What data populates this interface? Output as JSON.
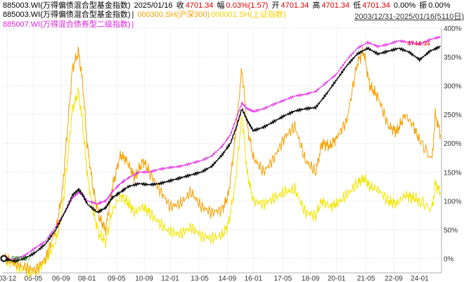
{
  "header": {
    "line1": {
      "code": "885003.WI(万得偏债混合型基金指数)",
      "date": "2025/01/16",
      "close_label": "收",
      "close": "4701.34",
      "change_label": "幅",
      "change": "0.03%(1.57)",
      "open_label": "开",
      "open": "4701.34",
      "high_label": "高",
      "high": "4701.34",
      "low_label": "低",
      "low": "4701.34",
      "amount": "0.00%",
      "amp_label": "振",
      "amp": "0.00%"
    },
    "line2": {
      "s1": "885003.WI(万得偏债混合型基金指数)",
      "sep": "|",
      "s2": "000300.SH(沪深300)",
      "s3": "000001.SH(上证指数)",
      "range": "2003/12/31-2025/01/16(5110日)"
    },
    "line3": {
      "s4": "885007.WI(万得混合债券型二级指数)",
      "sep": "|"
    }
  },
  "colors": {
    "s1": "#000000",
    "s2": "#f5a000",
    "s3": "#f2e600",
    "s4": "#e020e0",
    "grid": "#c8c8c8",
    "axis_text": "#333333",
    "last_label": "#e00000",
    "start_label": "#008000"
  },
  "chart_data": {
    "type": "line",
    "title": "",
    "xlabel": "",
    "ylabel": "",
    "ylim": [
      -25,
      400
    ],
    "yticks": [
      0,
      50,
      100,
      150,
      200,
      250,
      300,
      350,
      400
    ],
    "ytick_labels": [
      "0%",
      "50%",
      "100%",
      "150%",
      "200%",
      "250%",
      "300%",
      "350%",
      "400%"
    ],
    "xlim": [
      2003.95,
      2025.05
    ],
    "xticks": [
      2004.17,
      2005.42,
      2006.75,
      2008.0,
      2009.42,
      2010.75,
      2012.0,
      2013.42,
      2014.75,
      2016.0,
      2017.42,
      2018.75,
      2020.0,
      2021.42,
      2022.75,
      2024.0
    ],
    "xtick_labels": [
      "03-12",
      "05-05",
      "06-09",
      "08-01",
      "09-05",
      "10-09",
      "12-01",
      "13-05",
      "14-09",
      "16-01",
      "17-05",
      "18-09",
      "20-01",
      "21-05",
      "22-09",
      "24-01"
    ],
    "annotations": [
      {
        "text": "4744.94",
        "x": 2023.4,
        "y": 373
      },
      {
        "text": "990.67",
        "x": 2004.7,
        "y": 0
      }
    ],
    "series": [
      {
        "name": "885003.WI(万得偏债混合型基金指数)",
        "color": "#000000",
        "x": [
          2004.0,
          2004.5,
          2005.0,
          2005.5,
          2006.0,
          2006.5,
          2007.0,
          2007.3,
          2007.6,
          2007.8,
          2008.0,
          2008.5,
          2008.9,
          2009.2,
          2009.6,
          2010.0,
          2010.5,
          2011.0,
          2011.5,
          2012.0,
          2012.5,
          2013.0,
          2013.5,
          2014.0,
          2014.5,
          2014.9,
          2015.2,
          2015.45,
          2015.7,
          2016.0,
          2016.5,
          2017.0,
          2017.5,
          2018.0,
          2018.5,
          2019.0,
          2019.5,
          2020.0,
          2020.5,
          2021.0,
          2021.5,
          2022.0,
          2022.5,
          2023.0,
          2023.5,
          2024.0,
          2024.5,
          2025.0
        ],
        "values": [
          0,
          -5,
          0,
          10,
          25,
          50,
          85,
          110,
          120,
          110,
          95,
          80,
          88,
          105,
          115,
          125,
          130,
          128,
          130,
          135,
          140,
          145,
          150,
          160,
          180,
          200,
          230,
          260,
          240,
          222,
          228,
          238,
          248,
          256,
          260,
          262,
          285,
          310,
          335,
          355,
          365,
          355,
          360,
          365,
          358,
          345,
          360,
          368
        ]
      },
      {
        "name": "000300.SH(沪深300)",
        "color": "#f5a000",
        "x": [
          2004.0,
          2004.5,
          2005.0,
          2005.5,
          2006.0,
          2006.5,
          2006.8,
          2007.0,
          2007.3,
          2007.6,
          2007.8,
          2008.0,
          2008.3,
          2008.6,
          2008.9,
          2009.2,
          2009.6,
          2009.9,
          2010.3,
          2010.7,
          2011.0,
          2011.5,
          2012.0,
          2012.5,
          2013.0,
          2013.5,
          2014.0,
          2014.5,
          2014.8,
          2015.1,
          2015.45,
          2015.7,
          2016.0,
          2016.5,
          2017.0,
          2017.5,
          2018.0,
          2018.5,
          2019.0,
          2019.3,
          2019.7,
          2020.0,
          2020.5,
          2021.0,
          2021.3,
          2021.6,
          2022.0,
          2022.5,
          2022.9,
          2023.3,
          2023.7,
          2024.0,
          2024.6,
          2024.75,
          2025.0
        ],
        "values": [
          0,
          -8,
          -15,
          -20,
          0,
          50,
          110,
          200,
          330,
          360,
          300,
          200,
          120,
          70,
          50,
          120,
          180,
          170,
          140,
          170,
          150,
          120,
          90,
          95,
          115,
          90,
          80,
          85,
          110,
          200,
          330,
          230,
          175,
          150,
          175,
          210,
          230,
          170,
          150,
          200,
          195,
          210,
          240,
          340,
          360,
          300,
          280,
          230,
          220,
          250,
          230,
          205,
          170,
          250,
          215
        ]
      },
      {
        "name": "000001.SH(上证指数)",
        "color": "#f2e600",
        "x": [
          2004.0,
          2004.5,
          2005.0,
          2005.5,
          2006.0,
          2006.5,
          2006.8,
          2007.0,
          2007.3,
          2007.6,
          2007.8,
          2008.0,
          2008.3,
          2008.6,
          2008.9,
          2009.2,
          2009.6,
          2009.9,
          2010.3,
          2010.7,
          2011.0,
          2011.5,
          2012.0,
          2012.5,
          2013.0,
          2013.5,
          2014.0,
          2014.5,
          2014.8,
          2015.1,
          2015.45,
          2015.7,
          2016.0,
          2016.5,
          2017.0,
          2017.5,
          2018.0,
          2018.5,
          2019.0,
          2019.3,
          2019.7,
          2020.0,
          2020.5,
          2021.0,
          2021.3,
          2021.6,
          2022.0,
          2022.5,
          2022.9,
          2023.3,
          2023.7,
          2024.0,
          2024.6,
          2024.75,
          2025.0
        ],
        "values": [
          0,
          -10,
          -20,
          -25,
          -5,
          30,
          80,
          150,
          260,
          290,
          230,
          150,
          80,
          40,
          30,
          80,
          110,
          100,
          80,
          90,
          80,
          60,
          45,
          42,
          55,
          40,
          35,
          40,
          60,
          120,
          250,
          150,
          100,
          95,
          105,
          115,
          120,
          80,
          75,
          100,
          90,
          95,
          110,
          130,
          140,
          125,
          120,
          100,
          95,
          110,
          105,
          100,
          85,
          130,
          115
        ]
      },
      {
        "name": "885007.WI(万得混合债券型二级指数)",
        "color": "#e020e0",
        "x": [
          2004.0,
          2004.5,
          2005.0,
          2005.5,
          2006.0,
          2006.5,
          2007.0,
          2007.3,
          2007.6,
          2007.8,
          2008.0,
          2008.5,
          2008.9,
          2009.2,
          2009.6,
          2010.0,
          2010.5,
          2011.0,
          2011.5,
          2012.0,
          2012.5,
          2013.0,
          2013.5,
          2014.0,
          2014.5,
          2014.9,
          2015.2,
          2015.45,
          2015.7,
          2016.0,
          2016.5,
          2017.0,
          2017.5,
          2018.0,
          2018.5,
          2019.0,
          2019.5,
          2020.0,
          2020.5,
          2021.0,
          2021.5,
          2022.0,
          2022.5,
          2023.0,
          2023.5,
          2024.0,
          2024.5,
          2025.0
        ],
        "values": [
          0,
          -2,
          5,
          18,
          30,
          55,
          85,
          105,
          115,
          110,
          100,
          95,
          100,
          115,
          130,
          140,
          150,
          150,
          155,
          158,
          160,
          165,
          170,
          178,
          195,
          215,
          245,
          270,
          260,
          255,
          260,
          268,
          275,
          282,
          285,
          290,
          305,
          320,
          345,
          365,
          375,
          368,
          372,
          378,
          375,
          372,
          380,
          385
        ]
      }
    ]
  }
}
